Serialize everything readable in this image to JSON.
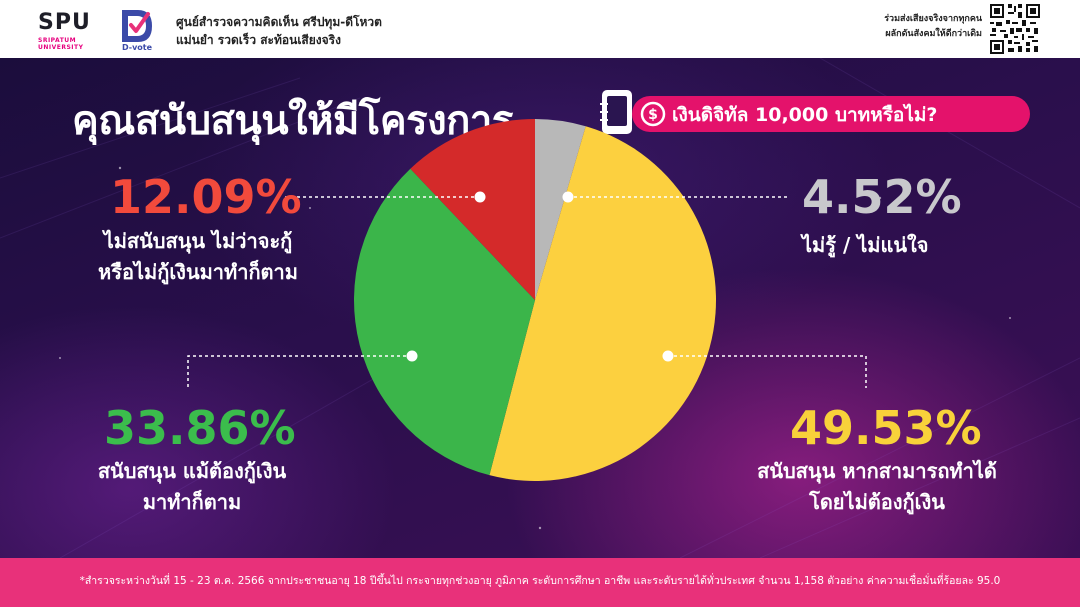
{
  "header": {
    "spu_logo_text": "SPU",
    "spu_logo_sub_line1": "SRIPATUM",
    "spu_logo_sub_line2": "UNIVERSITY",
    "dvote_label": "D-vote",
    "org_name": "ศูนย์สำรวจความคิดเห็น ศรีปทุม-ดีโหวต",
    "org_tagline": "แม่นยำ รวดเร็ว สะท้อนเสียงจริง",
    "cta_line1": "ร่วมส่งเสียงจริงจากทุกคน",
    "cta_line2": "ผลักดันสังคมให้ดีกว่าเดิม"
  },
  "main": {
    "title": "คุณสนับสนุนให้มีโครงการ",
    "pill_text": "เงินดิจิทัล 10,000 บาทหรือไม่?"
  },
  "chart_data": {
    "type": "pie",
    "slices": [
      {
        "value": 4.52,
        "label": "4.52%",
        "description_lines": [
          "ไม่รู้ / ไม่แน่ใจ"
        ],
        "color": "#b8b8b8",
        "label_color": "#c8c8cc"
      },
      {
        "value": 49.53,
        "label": "49.53%",
        "description_lines": [
          "สนับสนุน หากสามารถทำได้",
          "โดยไม่ต้องกู้เงิน"
        ],
        "color": "#fcd03f",
        "label_color": "#f8d23a"
      },
      {
        "value": 33.86,
        "label": "33.86%",
        "description_lines": [
          "สนับสนุน แม้ต้องกู้เงิน",
          "มาทำก็ตาม"
        ],
        "color": "#3bb54a",
        "label_color": "#3bbd4c"
      },
      {
        "value": 12.09,
        "label": "12.09%",
        "description_lines": [
          "ไม่สนับสนุน ไม่ว่าจะกู้",
          "หรือไม่กู้เงินมาทำก็ตาม"
        ],
        "color": "#d42a2a",
        "label_color": "#f24a3c"
      }
    ]
  },
  "footer": {
    "footnote": "*สำรวจระหว่างวันที่ 15 - 23 ต.ค. 2566 จากประชาชนอายุ 18 ปีขึ้นไป กระจายทุกช่วงอายุ ภูมิภาค ระดับการศึกษา อาชีพ และระดับรายได้ทั่วประเทศ จำนวน 1,158 ตัวอย่าง ค่าความเชื่อมั่นที่ร้อยละ 95.0"
  },
  "colors": {
    "header_bg": "#ffffff",
    "accent_pink": "#e4126b",
    "footer_bg": "#e8317a"
  }
}
